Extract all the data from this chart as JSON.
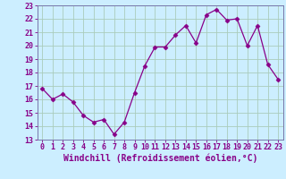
{
  "x": [
    0,
    1,
    2,
    3,
    4,
    5,
    6,
    7,
    8,
    9,
    10,
    11,
    12,
    13,
    14,
    15,
    16,
    17,
    18,
    19,
    20,
    21,
    22,
    23
  ],
  "y": [
    16.8,
    16.0,
    16.4,
    15.8,
    14.8,
    14.3,
    14.5,
    13.4,
    14.3,
    16.5,
    18.5,
    19.9,
    19.9,
    20.8,
    21.5,
    20.2,
    22.3,
    22.7,
    21.9,
    22.0,
    20.0,
    21.5,
    18.6,
    17.5
  ],
  "xlim": [
    -0.5,
    23.5
  ],
  "ylim": [
    13,
    23
  ],
  "yticks": [
    13,
    14,
    15,
    16,
    17,
    18,
    19,
    20,
    21,
    22,
    23
  ],
  "xticks": [
    0,
    1,
    2,
    3,
    4,
    5,
    6,
    7,
    8,
    9,
    10,
    11,
    12,
    13,
    14,
    15,
    16,
    17,
    18,
    19,
    20,
    21,
    22,
    23
  ],
  "xlabel": "Windchill (Refroidissement éolien,°C)",
  "line_color": "#880088",
  "marker": "D",
  "marker_size": 2.5,
  "bg_color": "#cceeff",
  "grid_color": "#aaccbb",
  "spine_color": "#7777aa",
  "tick_color": "#880088",
  "label_color": "#880088",
  "tick_fontsize": 6.0,
  "xlabel_fontsize": 7.0
}
